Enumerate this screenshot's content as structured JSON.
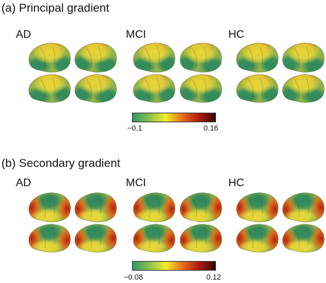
{
  "panels": [
    {
      "title": "(a) Principal gradient",
      "groups": [
        "AD",
        "MCI",
        "HC"
      ],
      "colorbar": {
        "min_label": "−0.1",
        "max_label": "0.16",
        "min": -0.1,
        "max": 0.16,
        "colors": [
          "#2e9a68",
          "#8cc04e",
          "#f2ee2a",
          "#e8701c",
          "#b01a14",
          "#3a0606"
        ]
      }
    },
    {
      "title": "(b) Secondary gradient",
      "groups": [
        "AD",
        "MCI",
        "HC"
      ],
      "colorbar": {
        "min_label": "−0.08",
        "max_label": "0.12",
        "min": -0.08,
        "max": 0.12,
        "colors": [
          "#2e9a68",
          "#8cc04e",
          "#f2ee2a",
          "#e8701c",
          "#b01a14",
          "#3a0606"
        ]
      }
    }
  ],
  "colors": {
    "base_green": "#8fb04a",
    "dark_green": "#2f8a5c",
    "yellow": "#e8d83a",
    "red": "#b3200f",
    "dark_red": "#5a0a06"
  }
}
